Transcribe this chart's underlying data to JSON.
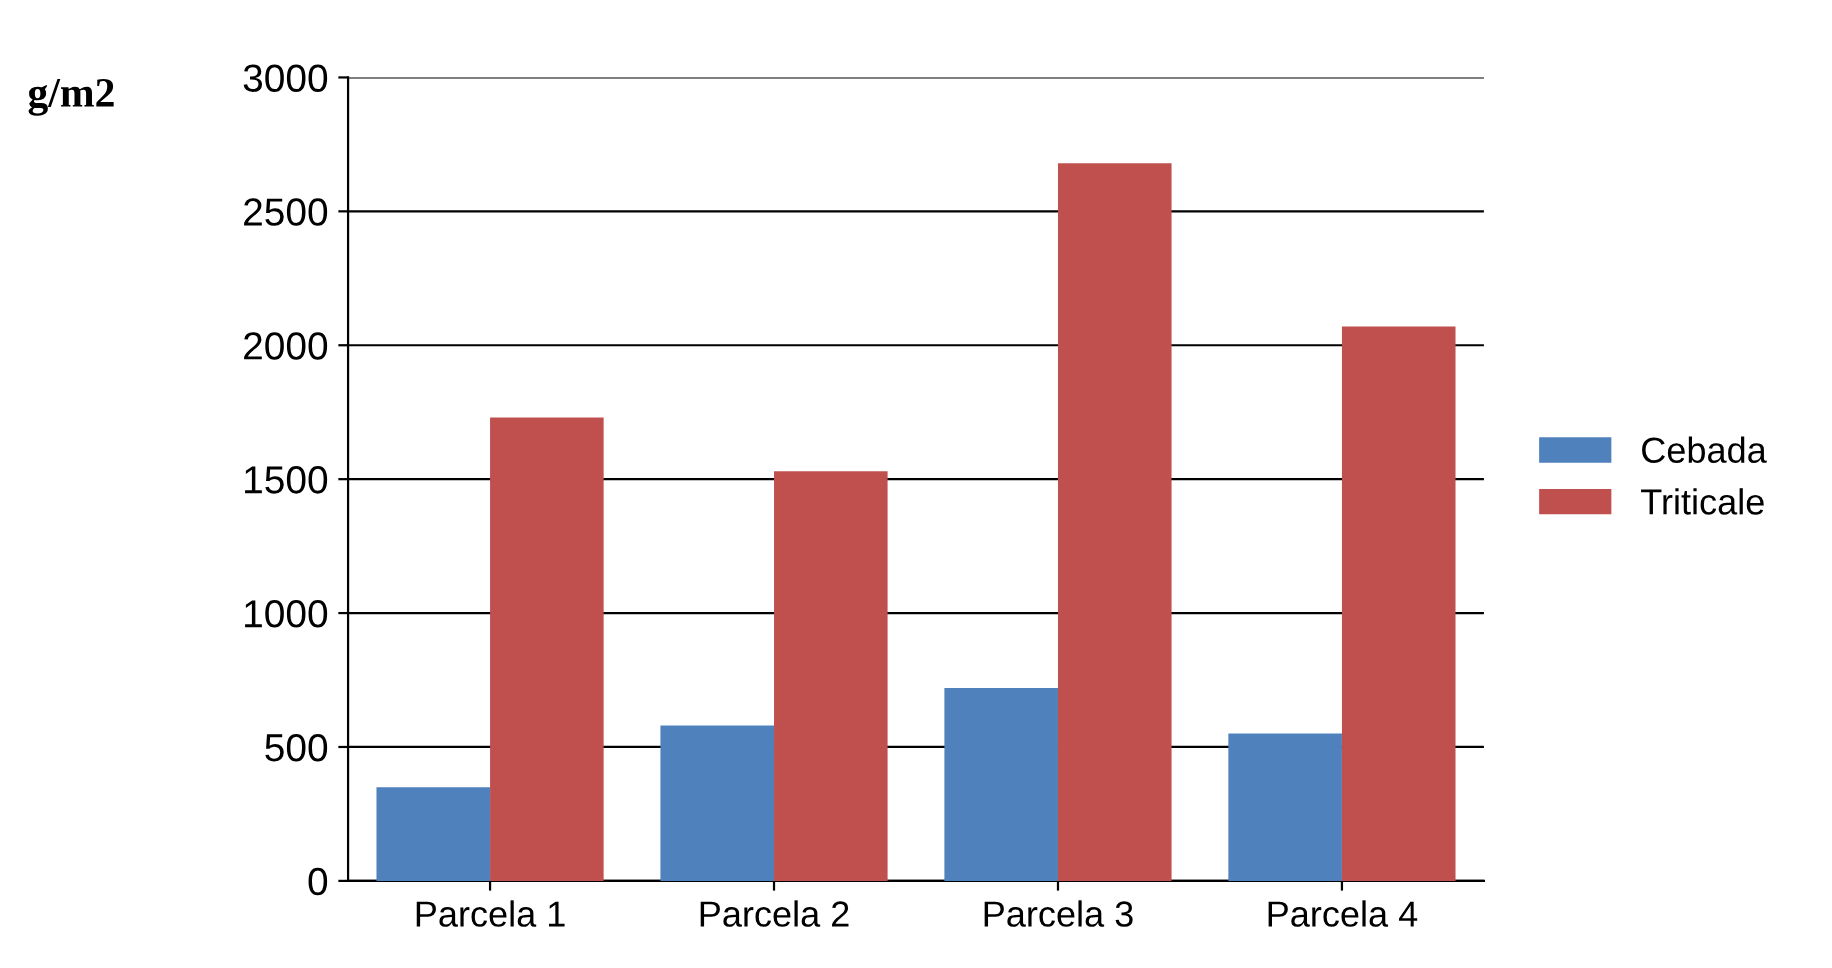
{
  "chart_data": {
    "type": "bar",
    "ylabel": "g/m2",
    "categories": [
      "Parcela 1",
      "Parcela 2",
      "Parcela 3",
      "Parcela 4"
    ],
    "series": [
      {
        "name": "Cebada",
        "color": "#4f81bd",
        "values": [
          350,
          580,
          720,
          550
        ]
      },
      {
        "name": "Triticale",
        "color": "#c0504d",
        "values": [
          1730,
          1530,
          2680,
          2070
        ]
      }
    ],
    "ylim": [
      0,
      3000
    ],
    "yticks": [
      0,
      500,
      1000,
      1500,
      2000,
      2500,
      3000
    ],
    "grid": "y",
    "legend": "right"
  }
}
